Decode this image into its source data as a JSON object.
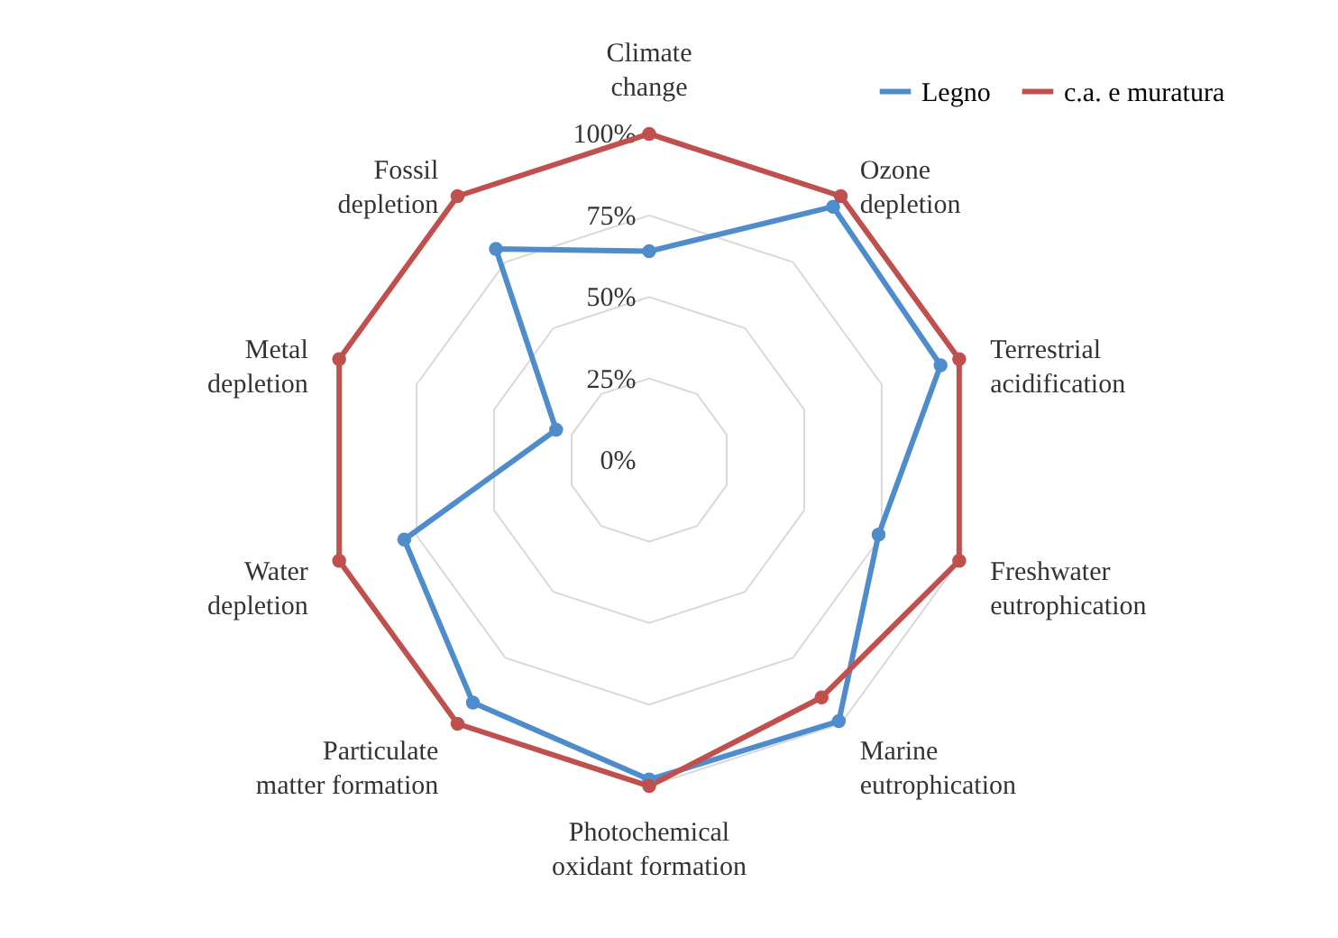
{
  "chart_data": {
    "type": "radar",
    "categories": [
      "Climate change",
      "Ozone depletion",
      "Terrestrial acidification",
      "Freshwater eutrophication",
      "Marine eutrophication",
      "Photochemical oxidant formation",
      "Particulate matter formation",
      "Water depletion",
      "Metal depletion",
      "Fossil depletion"
    ],
    "series": [
      {
        "name": "Legno",
        "color": "#4e8ccc",
        "values": [
          64,
          96,
          94,
          74,
          99,
          98,
          92,
          79,
          30,
          80
        ]
      },
      {
        "name": "c.a. e muratura",
        "color": "#c0504d",
        "values": [
          100,
          100,
          100,
          100,
          90,
          100,
          100,
          100,
          100,
          100
        ]
      }
    ],
    "ylim": [
      0,
      100
    ],
    "yticks": [
      {
        "value": 0,
        "label": "0%"
      },
      {
        "value": 25,
        "label": "25%"
      },
      {
        "value": 50,
        "label": "50%"
      },
      {
        "value": 75,
        "label": "75%"
      },
      {
        "value": 100,
        "label": "100%"
      }
    ],
    "grid": true,
    "legend": "top right",
    "marker": "circle",
    "line_style": "solid"
  }
}
